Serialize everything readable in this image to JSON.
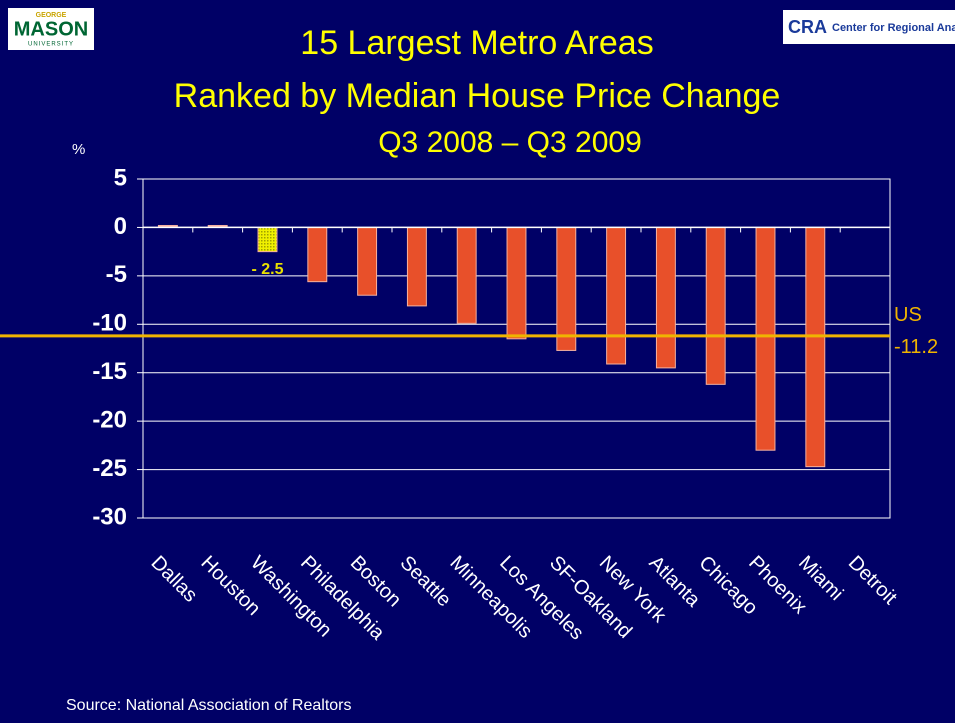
{
  "chart_data": {
    "type": "bar",
    "title": "15 Largest Metro Areas",
    "subtitle": "Ranked by Median House Price Change",
    "period": "Q3 2008 – Q3 2009",
    "y_unit": "%",
    "source": "Source: National Association of Realtors",
    "logos": {
      "left_top": "GEORGE",
      "left_main": "MASON",
      "left_bottom": "UNIVERSITY",
      "right_mark": "CRA",
      "right_text": "Center for Regional Analy"
    },
    "categories": [
      "Dallas",
      "Houston",
      "Washington",
      "Philadelphia",
      "Boston",
      "Seattle",
      "Minneapolis",
      "Los Angeles",
      "SF-Oakland",
      "New York",
      "Atlanta",
      "Chicago",
      "Phoenix",
      "Miami",
      "Detroit"
    ],
    "values": [
      0.2,
      0.2,
      -2.5,
      -5.6,
      -7.0,
      -8.1,
      -9.9,
      -11.5,
      -12.7,
      -14.1,
      -14.5,
      -16.2,
      -23.0,
      -24.7,
      null
    ],
    "value_labels": [
      null,
      null,
      "- 2.5",
      null,
      null,
      null,
      null,
      null,
      null,
      null,
      null,
      null,
      null,
      null,
      null
    ],
    "colors": [
      "#f4a6a0",
      "#f4a6a0",
      "#e8e000",
      "#e8502a",
      "#e8502a",
      "#e8502a",
      "#e8502a",
      "#e8502a",
      "#e8502a",
      "#e8502a",
      "#e8502a",
      "#e8502a",
      "#e8502a",
      "#e8502a",
      "#e8502a"
    ],
    "ylim": [
      -30,
      5
    ],
    "yticks": [
      5,
      0,
      -5,
      -10,
      -15,
      -20,
      -25,
      -30
    ],
    "grid": true,
    "reference_lines": [
      {
        "value": -11.2,
        "label": "US",
        "color": "#f0b400"
      }
    ]
  }
}
